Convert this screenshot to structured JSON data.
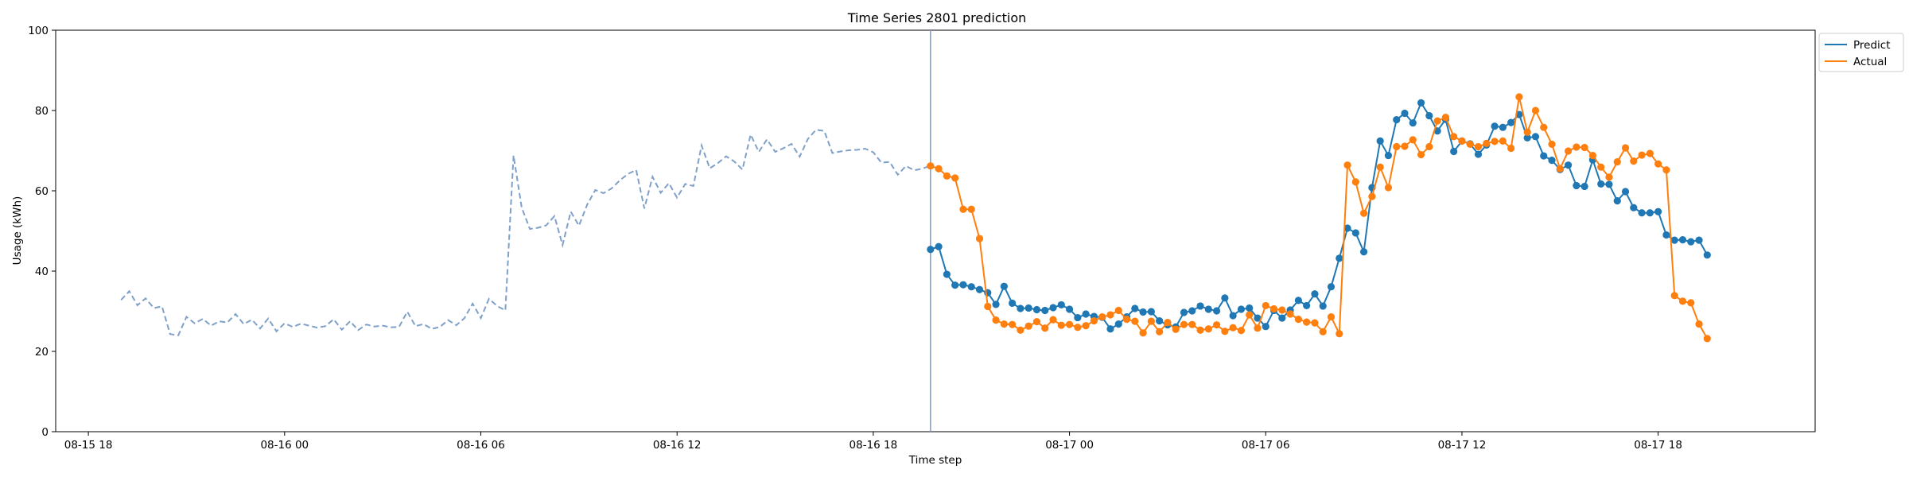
{
  "chart_data": {
    "type": "line",
    "title": "Time Series 2801 prediction",
    "xlabel": "Time step",
    "ylabel": "Usage (kWh)",
    "x_tick_labels": [
      "08-15 18",
      "08-16 00",
      "08-16 06",
      "08-16 12",
      "08-16 18",
      "08-17 00",
      "08-17 06",
      "08-17 12",
      "08-17 18"
    ],
    "x_range_hours": [
      -1,
      52.8
    ],
    "ylim": [
      0,
      100
    ],
    "y_ticks": [
      0,
      20,
      40,
      60,
      80,
      100
    ],
    "legend_position": "top-right",
    "grid": false,
    "colors": {
      "predict": "#1f77b4",
      "actual": "#ff7f0e",
      "history": "#7fa0c8",
      "divider": "#7a9bd0"
    },
    "history": {
      "start_hour": 1,
      "step_hours": 0.25,
      "values": [
        32.8,
        35.0,
        31.5,
        33.2,
        30.8,
        31.2,
        24.3,
        24.0,
        28.6,
        27.0,
        28.1,
        26.4,
        27.5,
        27.2,
        29.3,
        26.8,
        27.9,
        25.7,
        28.2,
        25.0,
        27.0,
        26.1,
        26.9,
        26.4,
        25.9,
        26.3,
        28.0,
        25.4,
        27.5,
        25.3,
        26.7,
        26.2,
        26.4,
        26.0,
        26.1,
        29.9,
        26.3,
        26.8,
        25.6,
        26.1,
        27.8,
        26.5,
        28.3,
        31.9,
        28.3,
        33.1,
        31.3,
        30.2,
        68.8,
        55.8,
        50.5,
        50.8,
        51.4,
        53.7,
        46.5,
        54.8,
        51.3,
        56.5,
        60.2,
        59.4,
        60.6,
        62.6,
        64.2,
        65.2,
        55.6,
        63.5,
        59.5,
        61.9,
        58.3,
        61.7,
        61.2,
        71.3,
        65.6,
        66.9,
        68.6,
        67.3,
        65.3,
        74.0,
        69.7,
        72.8,
        69.7,
        70.6,
        71.7,
        68.5,
        72.9,
        75.2,
        74.9,
        69.4,
        69.8,
        70.1,
        70.2,
        70.5,
        69.6,
        67.0,
        67.2,
        64.0,
        66.2,
        65.1,
        65.5,
        66.3
      ]
    },
    "divider_hour": 25.75,
    "series": [
      {
        "name": "Predict",
        "start_hour": 25.75,
        "step_hours": 0.25,
        "values": [
          45.4,
          46.1,
          39.2,
          36.5,
          36.6,
          36.1,
          35.4,
          34.6,
          31.7,
          36.2,
          32.0,
          30.7,
          30.8,
          30.4,
          30.2,
          30.9,
          31.6,
          30.5,
          28.4,
          29.3,
          28.7,
          28.5,
          25.6,
          26.8,
          28.6,
          30.7,
          29.8,
          29.9,
          27.6,
          26.6,
          26.1,
          29.7,
          30.1,
          31.3,
          30.5,
          30.1,
          33.3,
          28.9,
          30.5,
          30.8,
          28.3,
          26.2,
          30.2,
          28.3,
          30.3,
          32.7,
          31.4,
          34.3,
          31.3,
          36.1,
          43.2,
          50.7,
          49.5,
          44.8,
          60.8,
          72.4,
          68.8,
          77.7,
          79.3,
          76.9,
          81.9,
          78.7,
          74.9,
          77.8,
          69.8,
          72.4,
          71.7,
          69.1,
          71.4,
          76.1,
          75.8,
          77.0,
          79.0,
          73.2,
          73.5,
          68.7,
          67.6,
          65.3,
          66.4,
          61.3,
          61.1,
          67.7,
          61.7,
          61.6,
          57.5,
          59.8,
          55.8,
          54.5,
          54.5,
          54.8,
          49.0,
          47.7,
          47.8,
          47.3,
          47.7,
          44.0
        ]
      },
      {
        "name": "Actual",
        "start_hour": 25.75,
        "step_hours": 0.25,
        "values": [
          66.2,
          65.5,
          63.7,
          63.2,
          55.4,
          55.4,
          48.1,
          31.2,
          27.8,
          26.8,
          26.7,
          25.3,
          26.3,
          27.4,
          25.8,
          27.9,
          26.5,
          26.7,
          26.0,
          26.4,
          27.6,
          28.6,
          29.1,
          30.2,
          28.0,
          27.5,
          24.6,
          27.5,
          24.9,
          27.2,
          25.5,
          26.7,
          26.7,
          25.3,
          25.6,
          26.6,
          25.0,
          25.9,
          25.2,
          29.1,
          25.8,
          31.4,
          30.6,
          30.3,
          29.3,
          28.0,
          27.3,
          27.1,
          24.9,
          28.6,
          24.4,
          66.4,
          62.2,
          54.4,
          58.6,
          65.9,
          60.8,
          71.0,
          71.1,
          72.7,
          69.0,
          71.0,
          77.4,
          78.3,
          73.5,
          72.4,
          71.6,
          71.0,
          71.8,
          72.3,
          72.4,
          70.6,
          83.4,
          74.6,
          80.0,
          75.8,
          71.6,
          65.5,
          69.9,
          70.9,
          70.8,
          68.8,
          65.9,
          63.4,
          67.2,
          70.7,
          67.4,
          68.9,
          69.3,
          66.7,
          65.2,
          33.9,
          32.5,
          32.1,
          26.8,
          23.2
        ]
      }
    ]
  }
}
